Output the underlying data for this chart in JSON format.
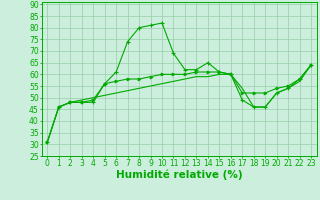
{
  "title": "",
  "xlabel": "Humidité relative (%)",
  "ylabel": "",
  "xlim": [
    -0.5,
    23.5
  ],
  "ylim": [
    25,
    91
  ],
  "yticks": [
    25,
    30,
    35,
    40,
    45,
    50,
    55,
    60,
    65,
    70,
    75,
    80,
    85,
    90
  ],
  "xticks": [
    0,
    1,
    2,
    3,
    4,
    5,
    6,
    7,
    8,
    9,
    10,
    11,
    12,
    13,
    14,
    15,
    16,
    17,
    18,
    19,
    20,
    21,
    22,
    23
  ],
  "background_color": "#cceedd",
  "grid_color": "#99ccaa",
  "line_color": "#00aa00",
  "line1": [
    31,
    46,
    48,
    48,
    48,
    56,
    61,
    74,
    80,
    81,
    82,
    69,
    62,
    62,
    65,
    61,
    60,
    49,
    46,
    46,
    52,
    54,
    58,
    64
  ],
  "line2": [
    31,
    46,
    48,
    48,
    49,
    56,
    57,
    58,
    58,
    59,
    60,
    60,
    60,
    61,
    61,
    61,
    60,
    52,
    52,
    52,
    54,
    55,
    58,
    64
  ],
  "line3": [
    31,
    46,
    48,
    49,
    50,
    51,
    52,
    53,
    54,
    55,
    56,
    57,
    58,
    59,
    59,
    60,
    60,
    54,
    46,
    46,
    52,
    54,
    57,
    64
  ],
  "font_color": "#00aa00",
  "tick_fontsize": 5.5,
  "label_fontsize": 7.5
}
